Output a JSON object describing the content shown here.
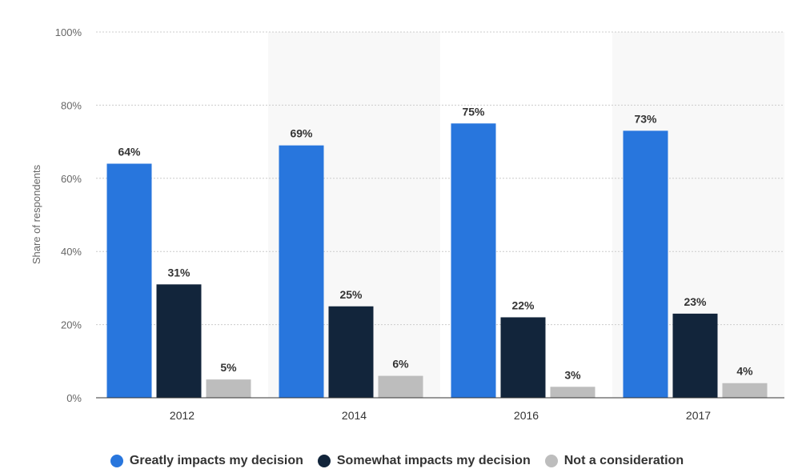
{
  "chart_data": {
    "type": "bar",
    "categories": [
      "2012",
      "2014",
      "2016",
      "2017"
    ],
    "series": [
      {
        "name": "Greatly impacts my decision",
        "values": [
          64,
          69,
          75,
          73
        ],
        "color": "#2876dd"
      },
      {
        "name": "Somewhat impacts my decision",
        "values": [
          31,
          25,
          22,
          23
        ],
        "color": "#12253b"
      },
      {
        "name": "Not a consideration",
        "values": [
          5,
          6,
          3,
          4
        ],
        "color": "#bdbdbd"
      }
    ],
    "data_labels": [
      [
        "64%",
        "31%",
        "5%"
      ],
      [
        "69%",
        "25%",
        "6%"
      ],
      [
        "75%",
        "22%",
        "3%"
      ],
      [
        "73%",
        "23%",
        "4%"
      ]
    ],
    "ylabel": "Share of respondents",
    "ylim": [
      0,
      100
    ],
    "yticks": [
      0,
      20,
      40,
      60,
      80,
      100
    ],
    "ytick_labels": [
      "0%",
      "20%",
      "40%",
      "60%",
      "80%",
      "100%"
    ],
    "grid": true,
    "legend_position": "bottom"
  }
}
